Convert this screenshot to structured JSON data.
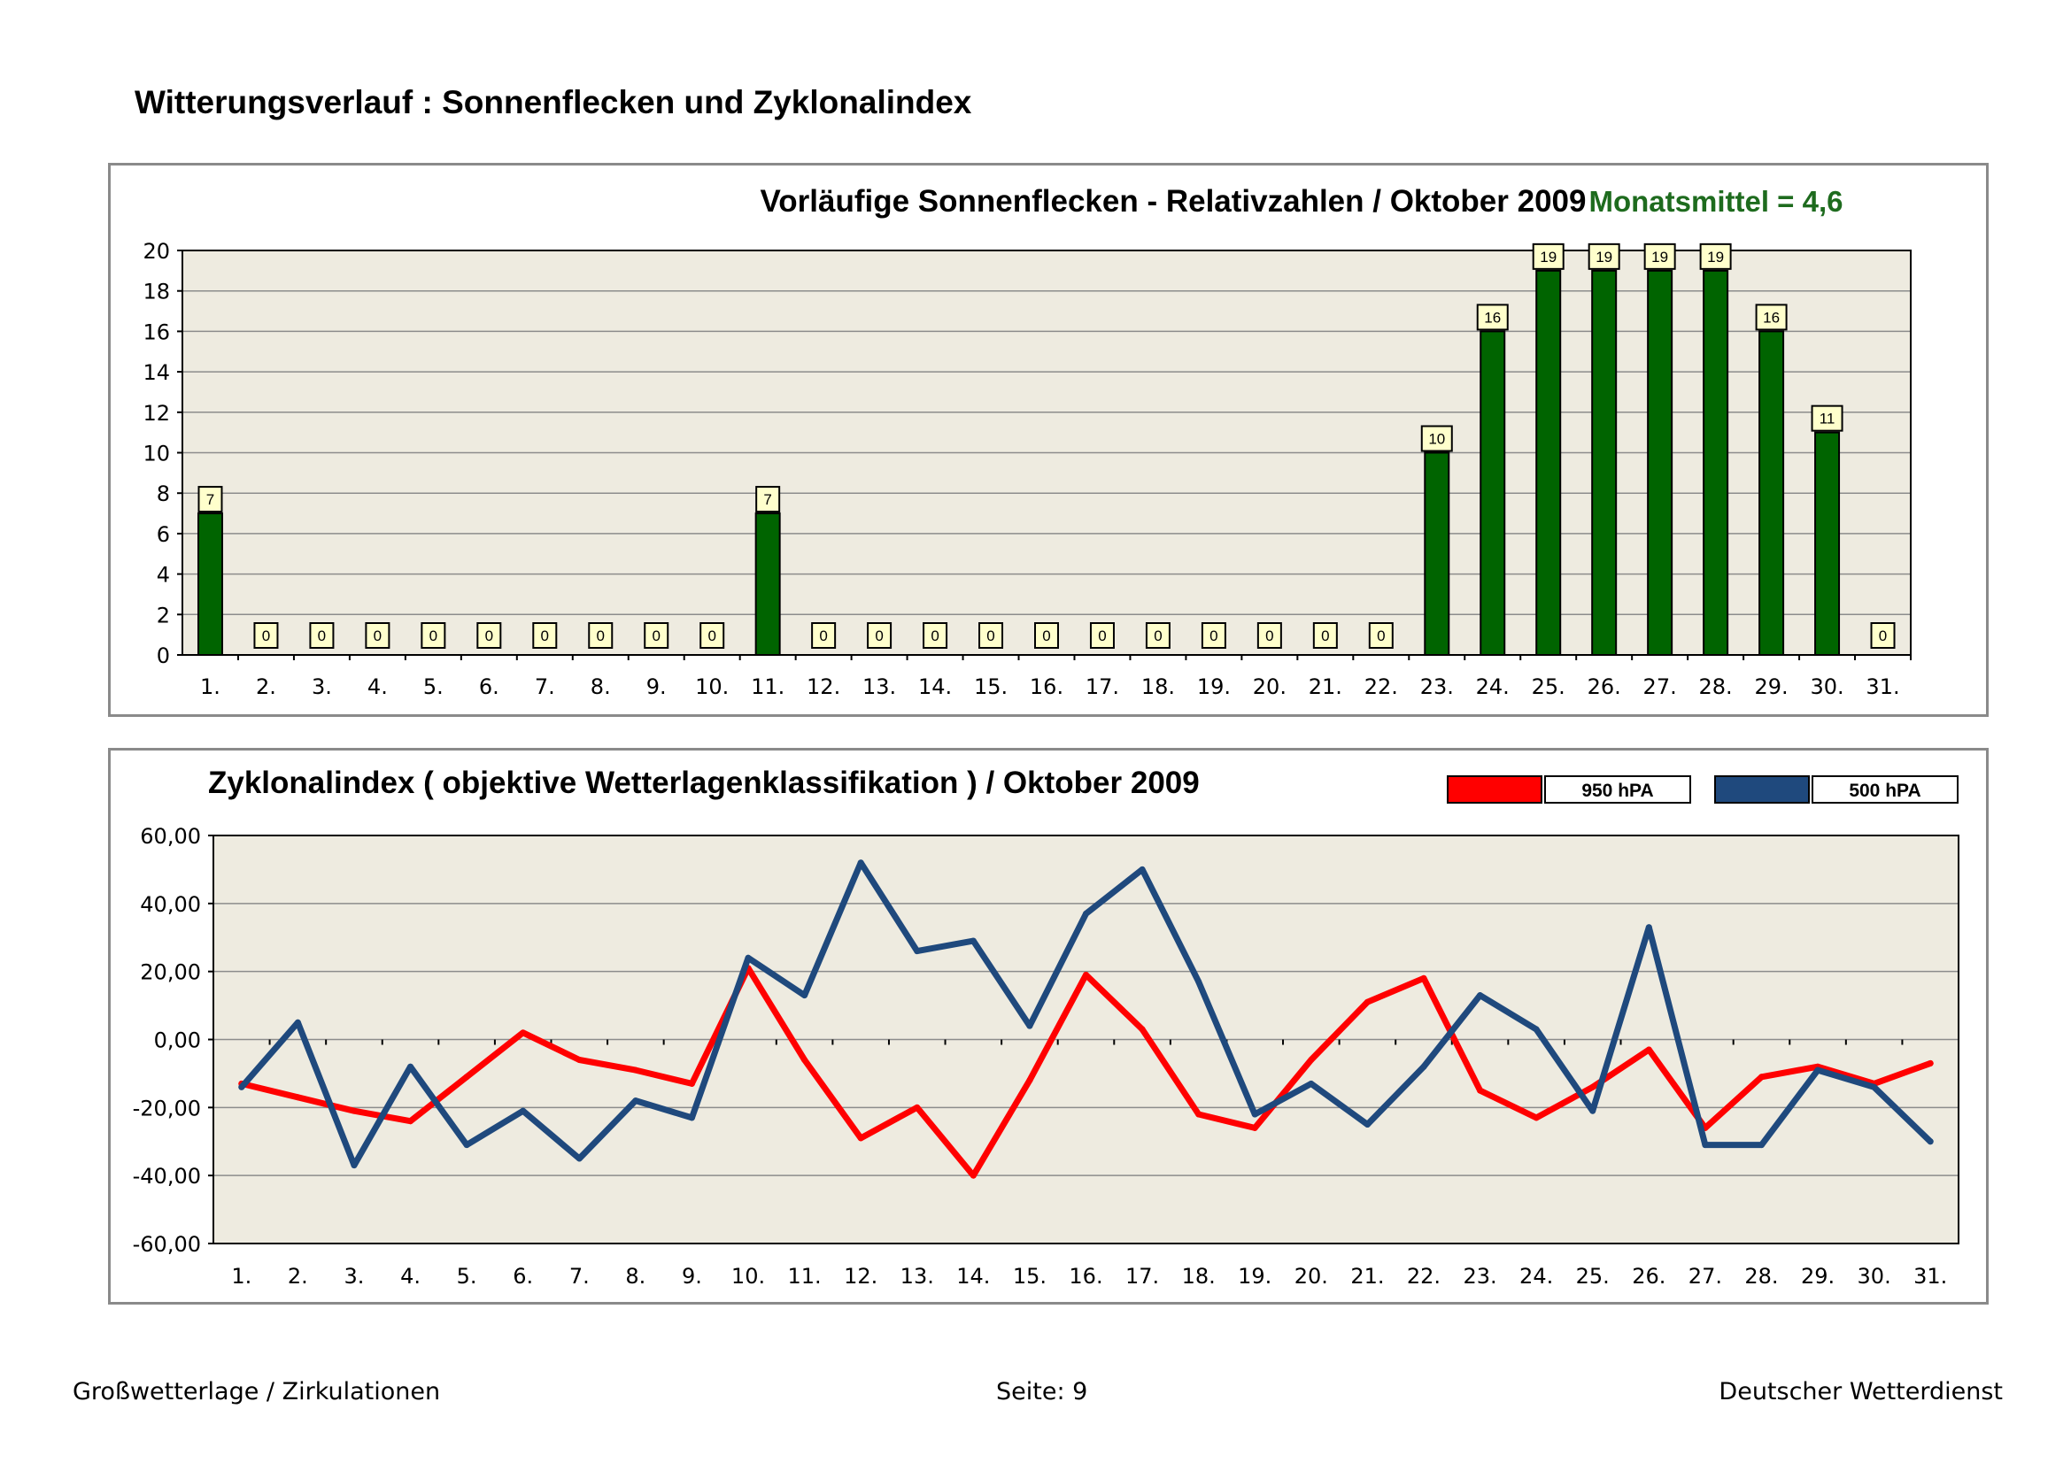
{
  "page": {
    "title": "Witterungsverlauf : Sonnenflecken und Zyklonalindex",
    "footer_left": "Großwetterlage / Zirkulationen",
    "footer_center": "Seite: 9",
    "footer_right": "Deutscher Wetterdienst"
  },
  "colors": {
    "plot_bg": "#eeebe0",
    "bar": "#006400",
    "label_bg": "#ffffcc",
    "mean_text": "#1e6b1e",
    "series_950": "#ff0000",
    "series_500": "#1f497d"
  },
  "chart_data": [
    {
      "type": "bar",
      "title": "Vorläufige Sonnenflecken - Relativzahlen  /   Oktober 2009",
      "annotation": "Monatsmittel = 4,6",
      "xlabel": "",
      "ylabel": "",
      "ylim": [
        0,
        20
      ],
      "yticks": [
        0,
        2,
        4,
        6,
        8,
        10,
        12,
        14,
        16,
        18,
        20
      ],
      "categories": [
        "1.",
        "2.",
        "3.",
        "4.",
        "5.",
        "6.",
        "7.",
        "8.",
        "9.",
        "10.",
        "11.",
        "12.",
        "13.",
        "14.",
        "15.",
        "16.",
        "17.",
        "18.",
        "19.",
        "20.",
        "21.",
        "22.",
        "23.",
        "24.",
        "25.",
        "26.",
        "27.",
        "28.",
        "29.",
        "30.",
        "31."
      ],
      "values": [
        7,
        0,
        0,
        0,
        0,
        0,
        0,
        0,
        0,
        0,
        7,
        0,
        0,
        0,
        0,
        0,
        0,
        0,
        0,
        0,
        0,
        0,
        10,
        16,
        19,
        19,
        19,
        19,
        16,
        11,
        0
      ],
      "grid": true,
      "legend": "none"
    },
    {
      "type": "line",
      "title": "Zyklonalindex  ( objektive Wetterlagenklassifikation )  /  Oktober 2009",
      "xlabel": "",
      "ylabel": "",
      "ylim": [
        -60,
        60
      ],
      "yticks": [
        "-60,00",
        "-40,00",
        "-20,00",
        "0,00",
        "20,00",
        "40,00",
        "60,00"
      ],
      "ytick_values": [
        -60,
        -40,
        -20,
        0,
        20,
        40,
        60
      ],
      "categories": [
        "1.",
        "2.",
        "3.",
        "4.",
        "5.",
        "6.",
        "7.",
        "8.",
        "9.",
        "10.",
        "11.",
        "12.",
        "13.",
        "14.",
        "15.",
        "16.",
        "17.",
        "18.",
        "19.",
        "20.",
        "21.",
        "22.",
        "23.",
        "24.",
        "25.",
        "26.",
        "27.",
        "28.",
        "29.",
        "30.",
        "31."
      ],
      "series": [
        {
          "name": "950 hPA",
          "values": [
            -13,
            -17,
            -21,
            -24,
            -11,
            2,
            -6,
            -9,
            -13,
            21,
            -6,
            -29,
            -20,
            -40,
            -12,
            19,
            3,
            -22,
            -26,
            -6,
            11,
            18,
            -15,
            -23,
            -14,
            -3,
            -26,
            -11,
            -8,
            -13,
            -7
          ]
        },
        {
          "name": "500 hPA",
          "values": [
            -14,
            5,
            -37,
            -8,
            -31,
            -21,
            -35,
            -18,
            -23,
            24,
            13,
            52,
            26,
            29,
            4,
            37,
            50,
            17,
            -22,
            -13,
            -25,
            -8,
            13,
            3,
            -21,
            33,
            -31,
            -31,
            -9,
            -14,
            -30
          ]
        }
      ],
      "grid": true,
      "legend": "top-right"
    }
  ]
}
